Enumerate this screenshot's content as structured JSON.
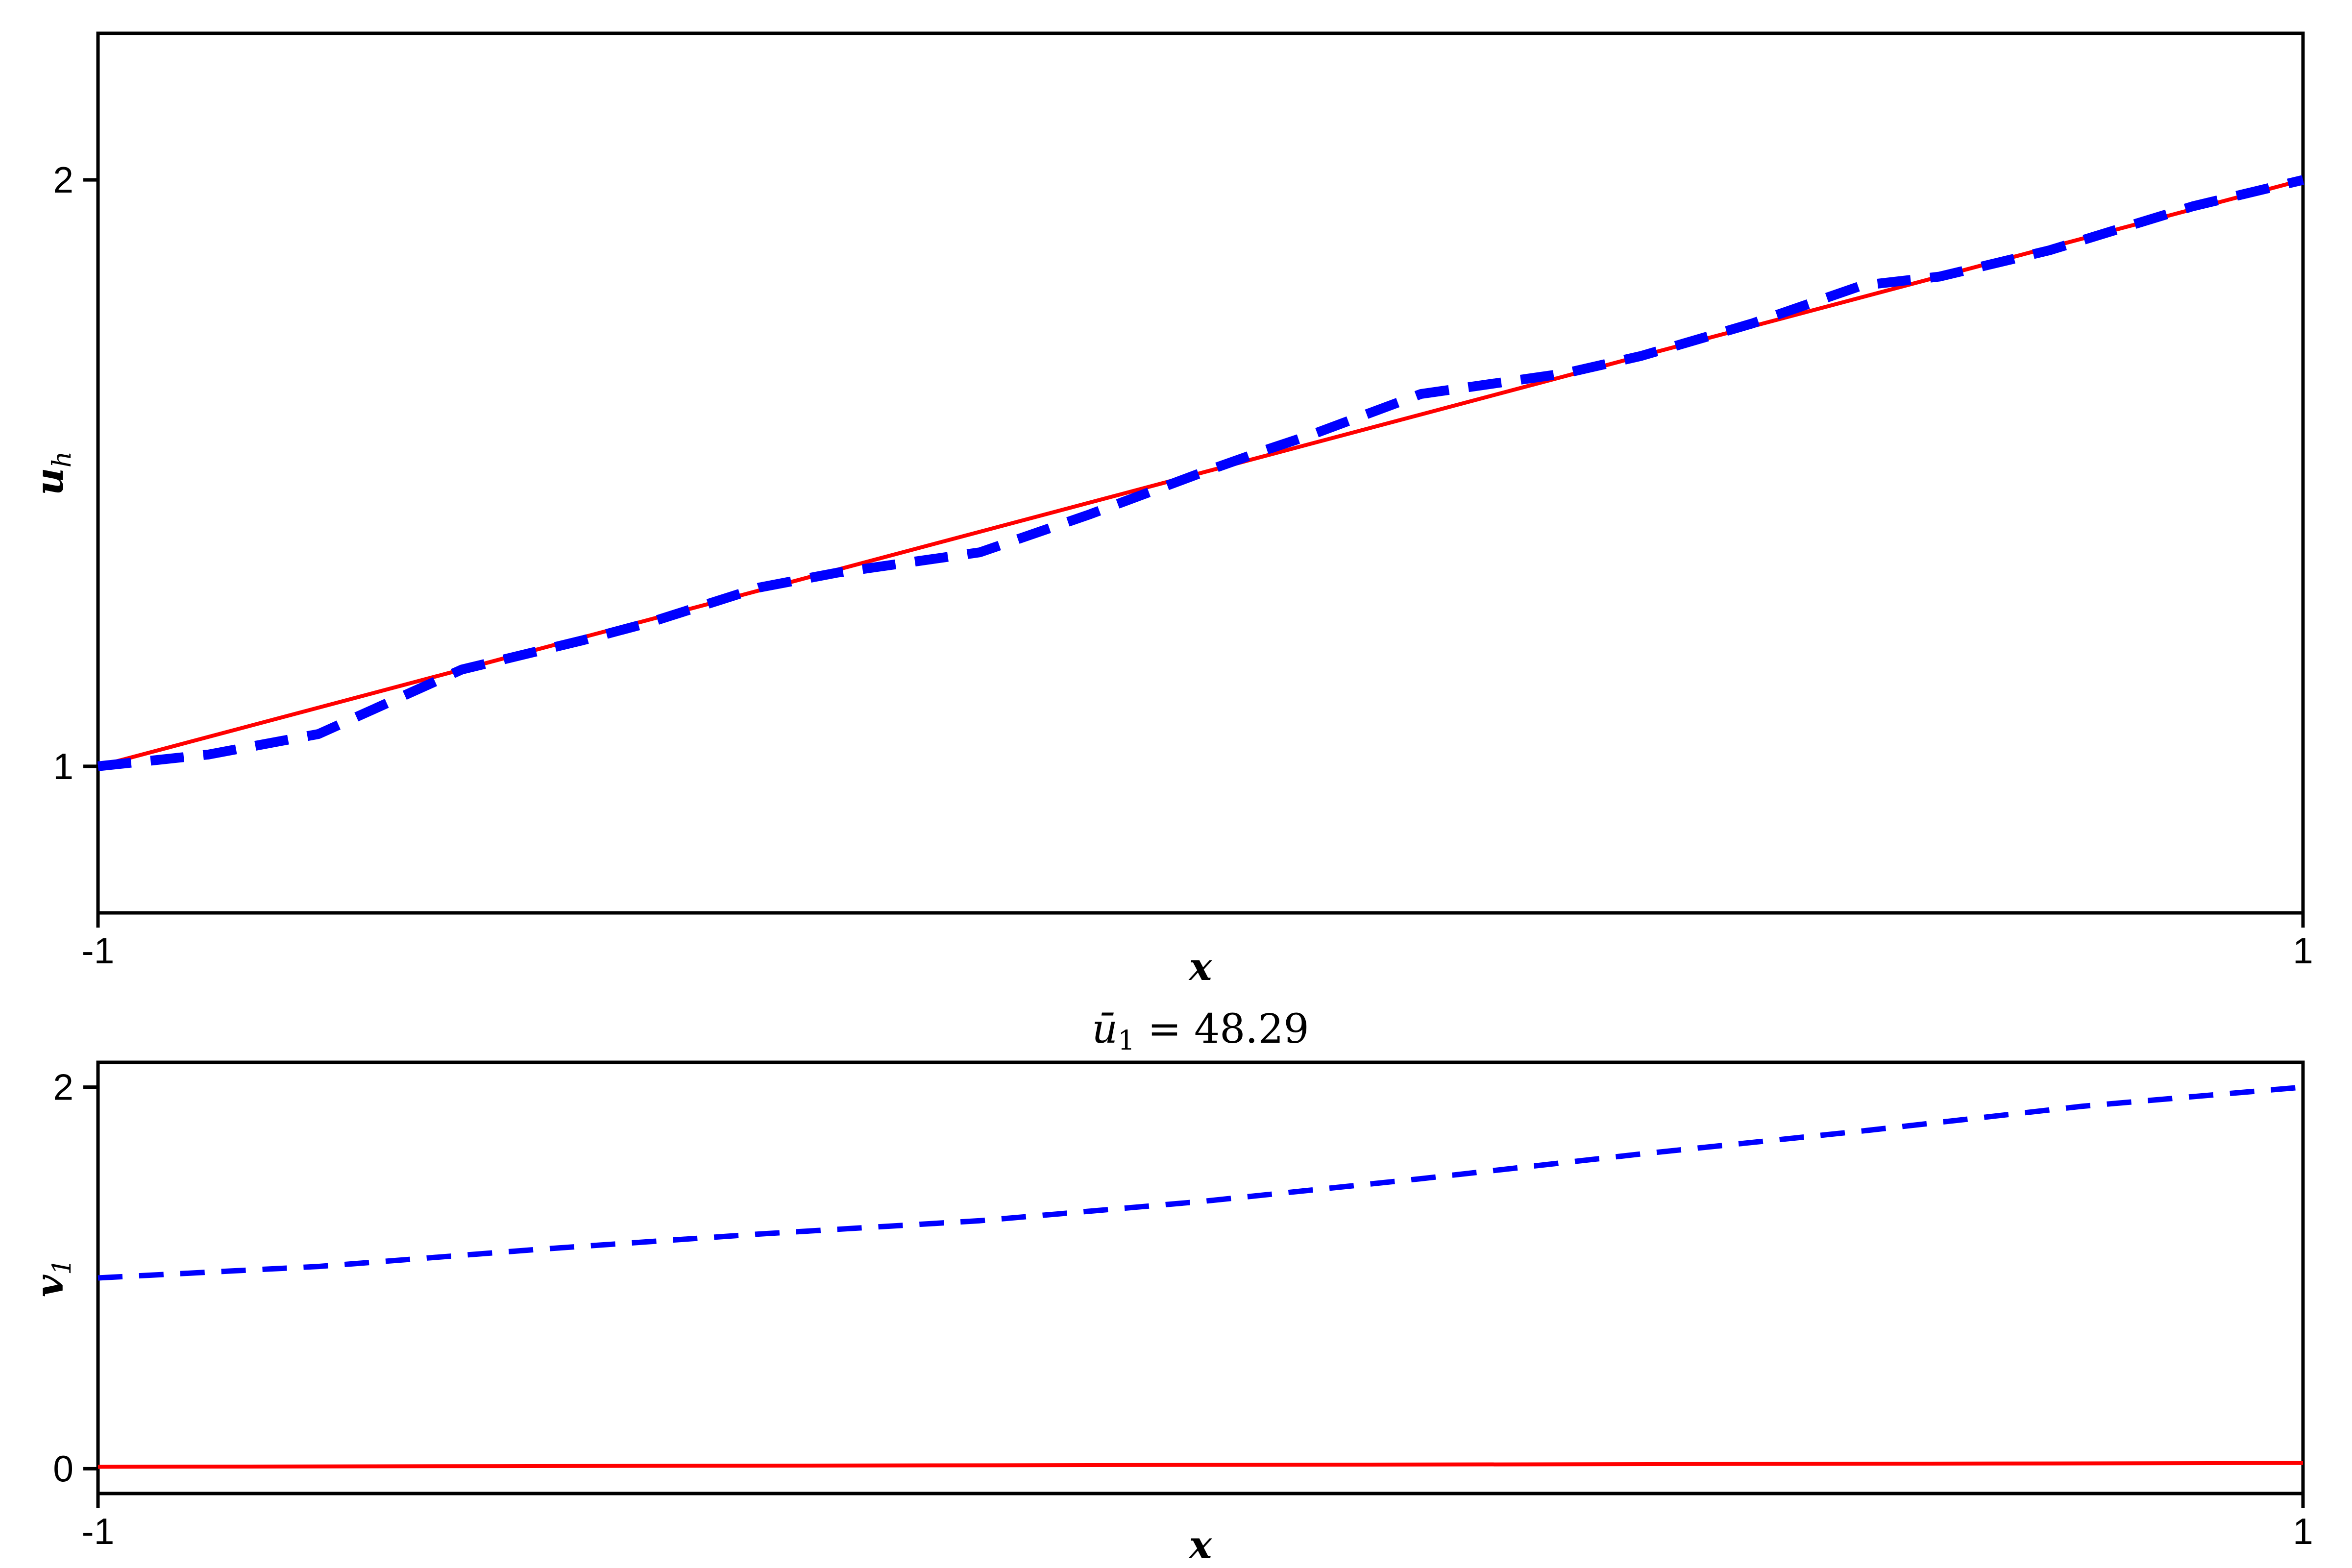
{
  "chart_data": [
    {
      "type": "line",
      "title": "",
      "xlabel": "x",
      "ylabel": {
        "base": "u",
        "sub": "h"
      },
      "xlim": [
        -1,
        1
      ],
      "ylim": [
        0.75,
        2.25
      ],
      "xticks": [
        -1,
        1
      ],
      "xtick_labels": [
        "-1",
        "1"
      ],
      "yticks": [
        1,
        2
      ],
      "ytick_labels": [
        "1",
        "2"
      ],
      "grid": false,
      "legend": "none",
      "series": [
        {
          "color": "#ff0000",
          "style": "solid",
          "x": [
            -1,
            1
          ],
          "y": [
            1,
            2
          ]
        },
        {
          "color": "#0000ff",
          "style": "dashed",
          "x": [
            -1,
            -0.9,
            -0.8,
            -0.67,
            -0.56,
            -0.5,
            -0.4,
            -0.33,
            -0.2,
            -0.1,
            0,
            0.06,
            0.1,
            0.2,
            0.33,
            0.4,
            0.5,
            0.6,
            0.67,
            0.77,
            0.9,
            1
          ],
          "y": [
            1,
            1.02,
            1.055,
            1.165,
            1.215,
            1.245,
            1.305,
            1.33,
            1.365,
            1.43,
            1.5,
            1.54,
            1.565,
            1.635,
            1.67,
            1.7,
            1.755,
            1.82,
            1.835,
            1.88,
            1.955,
            2
          ]
        }
      ]
    },
    {
      "type": "line",
      "title": {
        "base": "ū",
        "sub": "1",
        "rest": " = 48.29"
      },
      "xlabel": "x",
      "ylabel": {
        "base": "v",
        "sub": "1"
      },
      "xlim": [
        -1,
        1
      ],
      "ylim": [
        -0.13,
        2.13
      ],
      "xticks": [
        -1,
        1
      ],
      "xtick_labels": [
        "-1",
        "1"
      ],
      "yticks": [
        0,
        2
      ],
      "ytick_labels": [
        "0",
        "2"
      ],
      "grid": false,
      "legend": "none",
      "series": [
        {
          "color": "#ff0000",
          "style": "solid",
          "x": [
            -1,
            1
          ],
          "y": [
            0.01,
            0.03
          ]
        },
        {
          "color": "#0000ff",
          "style": "dashed",
          "x": [
            -1,
            -0.8,
            -0.6,
            -0.4,
            -0.2,
            0,
            0.2,
            0.4,
            0.6,
            0.8,
            1
          ],
          "y": [
            1.0,
            1.06,
            1.15,
            1.23,
            1.3,
            1.4,
            1.52,
            1.65,
            1.77,
            1.9,
            2.0
          ]
        }
      ]
    }
  ]
}
